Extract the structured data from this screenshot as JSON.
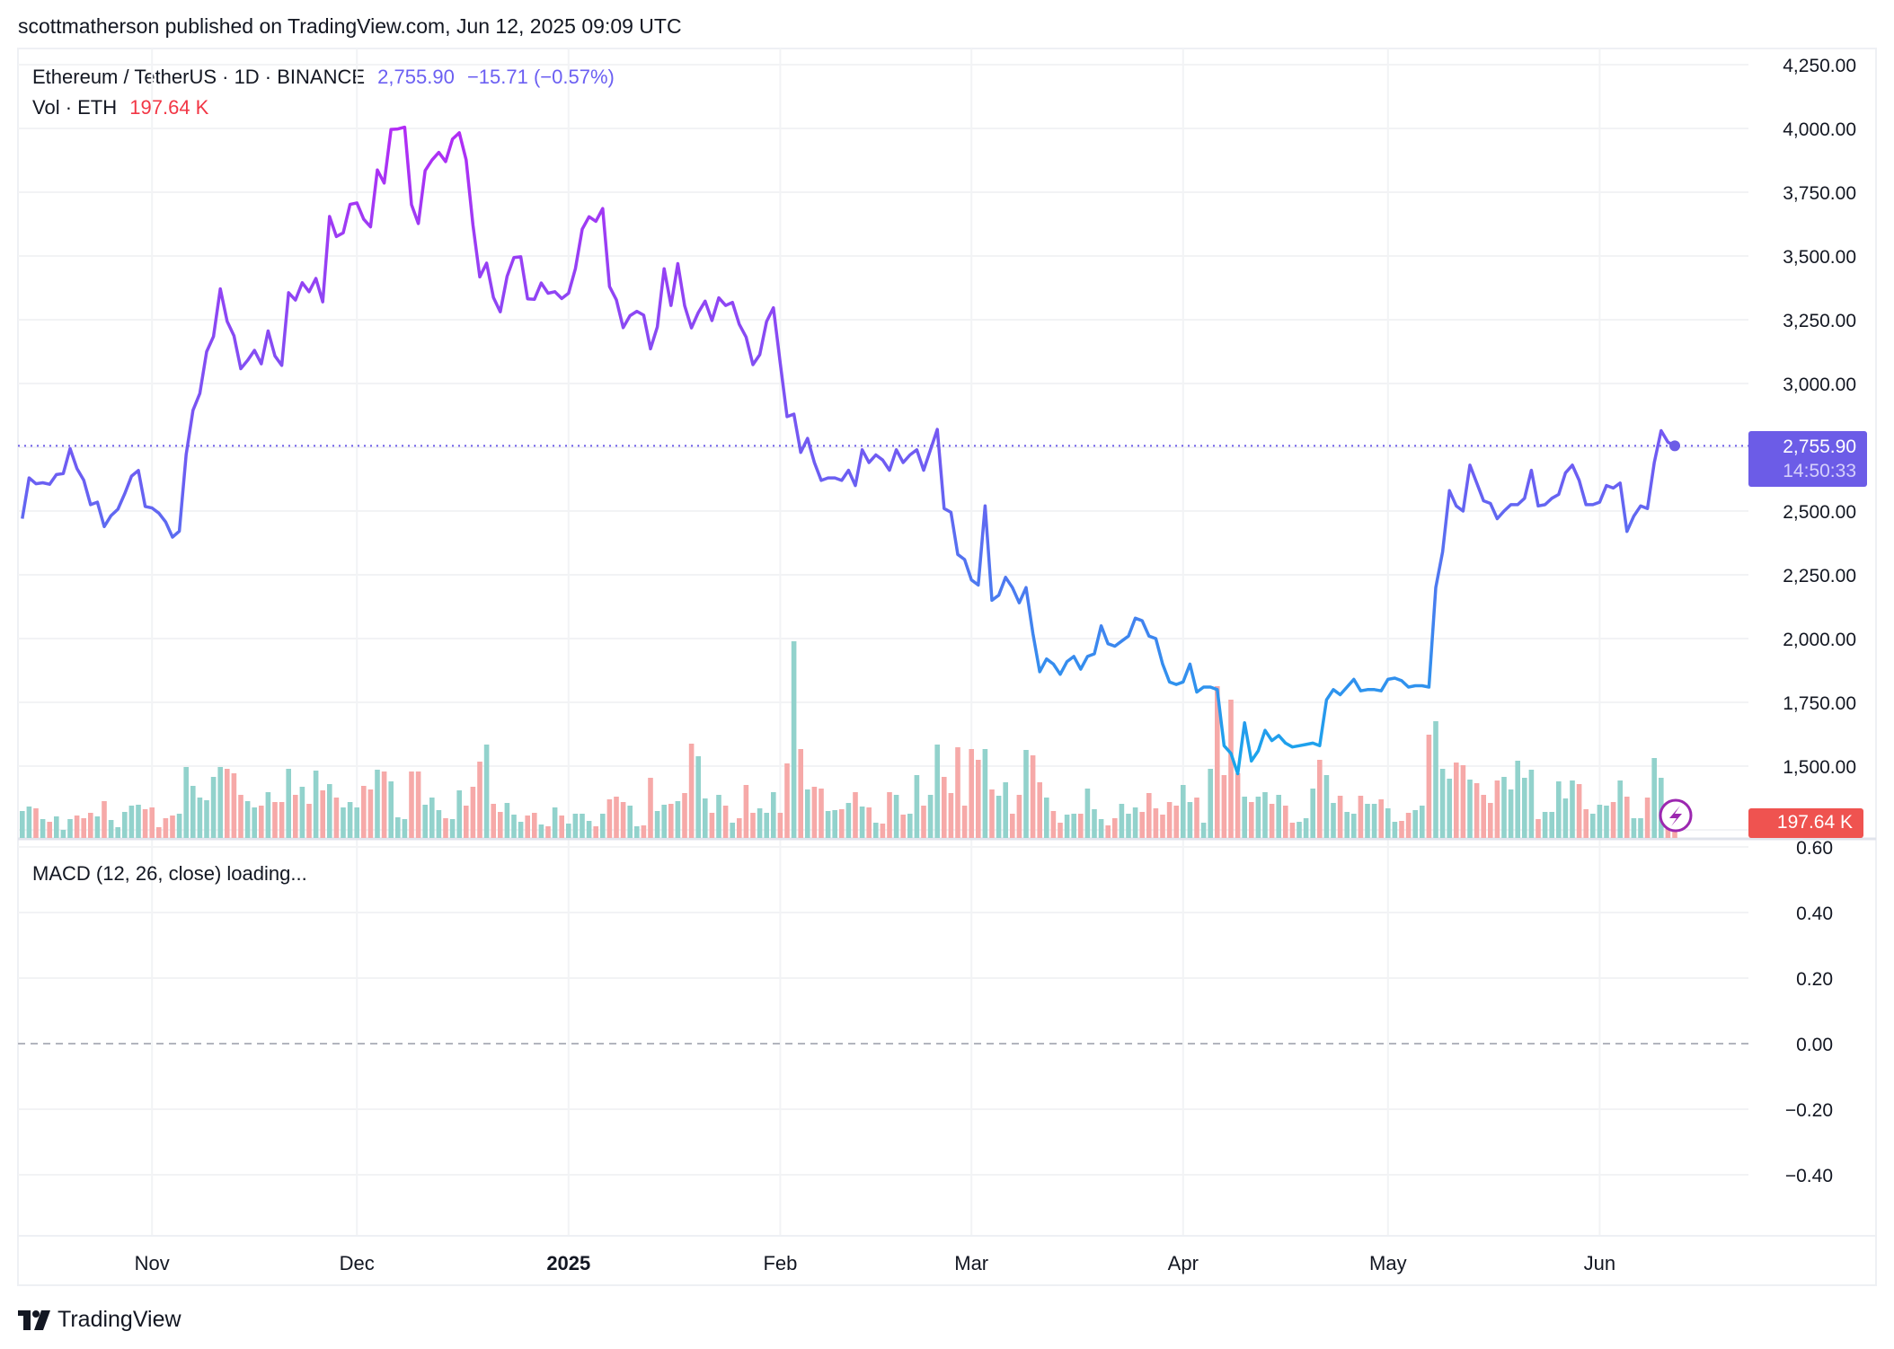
{
  "header": {
    "publish_line": "scottmatherson published on TradingView.com, Jun 12, 2025 09:09 UTC"
  },
  "legend": {
    "symbol": "Ethereum / TetherUS · 1D · BINANCE",
    "last_price": "2,755.90",
    "change": "−15.71 (−0.57%)",
    "volume_label": "Vol · ETH",
    "volume_value": "197.64 K"
  },
  "price_label": {
    "price": "2,755.90",
    "countdown": "14:50:33"
  },
  "volume_label_box": "197.64 K",
  "macd": {
    "title": "MACD (12, 26, close) loading...",
    "ticks": [
      "0.60",
      "0.40",
      "0.20",
      "0.00",
      "−0.20",
      "−0.40"
    ],
    "tick_values": [
      0.6,
      0.4,
      0.2,
      0,
      -0.2,
      -0.4
    ]
  },
  "footer": {
    "brand": "TradingView"
  },
  "colors": {
    "line_top": "#b22cf5",
    "line_mid": "#6b5ff2",
    "line_low": "#18a6ec",
    "vol_up": "#92d2cc",
    "vol_down": "#f6a9a8",
    "price_box": "#6c5ce7",
    "vol_box": "#ef5350",
    "flash_icon": "#9c27b0"
  },
  "chart_data": {
    "type": "line",
    "title": "Ethereum / TetherUS · 1D · BINANCE",
    "x_start": "2024-10-13",
    "x_interval": "1D",
    "x_ticks": [
      {
        "label": "Nov",
        "date": "2024-11-01",
        "bold": false
      },
      {
        "label": "Dec",
        "date": "2024-12-01",
        "bold": false
      },
      {
        "label": "2025",
        "date": "2025-01-01",
        "bold": true
      },
      {
        "label": "Feb",
        "date": "2025-02-01",
        "bold": false
      },
      {
        "label": "Mar",
        "date": "2025-03-01",
        "bold": false
      },
      {
        "label": "Apr",
        "date": "2025-04-01",
        "bold": false
      },
      {
        "label": "May",
        "date": "2025-05-01",
        "bold": false
      },
      {
        "label": "Jun",
        "date": "2025-06-01",
        "bold": false
      }
    ],
    "y_ticks": [
      "4,250.00",
      "4,000.00",
      "3,750.00",
      "3,500.00",
      "3,250.00",
      "3,000.00",
      "2,500.00",
      "2,250.00",
      "2,000.00",
      "1,750.00",
      "1,500.00"
    ],
    "y_tick_values": [
      4250,
      4000,
      3750,
      3500,
      3250,
      3000,
      2500,
      2250,
      2000,
      1750,
      1500
    ],
    "ylim": [
      1500,
      4250
    ],
    "last_value": 2755.9,
    "series": [
      {
        "name": "ETHUSDT close",
        "values": [
          2470,
          2630,
          2607,
          2611,
          2605,
          2643,
          2647,
          2745,
          2667,
          2621,
          2525,
          2535,
          2439,
          2482,
          2507,
          2568,
          2637,
          2659,
          2518,
          2512,
          2492,
          2457,
          2398,
          2421,
          2722,
          2895,
          2961,
          3125,
          3184,
          3371,
          3244,
          3187,
          3058,
          3091,
          3130,
          3077,
          3206,
          3108,
          3071,
          3356,
          3327,
          3395,
          3360,
          3412,
          3320,
          3655,
          3576,
          3591,
          3702,
          3708,
          3644,
          3614,
          3837,
          3786,
          3996,
          3998,
          4005,
          3701,
          3627,
          3835,
          3876,
          3906,
          3870,
          3958,
          3983,
          3877,
          3621,
          3418,
          3472,
          3337,
          3281,
          3420,
          3494,
          3497,
          3332,
          3330,
          3394,
          3354,
          3360,
          3333,
          3354,
          3450,
          3605,
          3654,
          3636,
          3686,
          3380,
          3328,
          3219,
          3266,
          3283,
          3268,
          3136,
          3222,
          3450,
          3306,
          3470,
          3305,
          3218,
          3278,
          3323,
          3247,
          3336,
          3306,
          3318,
          3232,
          3182,
          3074,
          3113,
          3243,
          3297,
          3080,
          2870,
          2880,
          2730,
          2785,
          2690,
          2620,
          2630,
          2630,
          2620,
          2660,
          2600,
          2740,
          2690,
          2720,
          2700,
          2660,
          2740,
          2690,
          2720,
          2740,
          2660,
          2740,
          2820,
          2510,
          2495,
          2330,
          2310,
          2230,
          2210,
          2520,
          2150,
          2170,
          2240,
          2200,
          2140,
          2200,
          2020,
          1870,
          1920,
          1900,
          1860,
          1910,
          1930,
          1880,
          1930,
          1940,
          2050,
          1980,
          1970,
          1990,
          2010,
          2080,
          2070,
          2010,
          2000,
          1900,
          1830,
          1820,
          1830,
          1900,
          1790,
          1810,
          1810,
          1800,
          1580,
          1550,
          1470,
          1670,
          1520,
          1560,
          1640,
          1600,
          1620,
          1590,
          1575,
          1580,
          1585,
          1590,
          1580,
          1760,
          1800,
          1780,
          1810,
          1840,
          1795,
          1800,
          1800,
          1795,
          1840,
          1845,
          1835,
          1810,
          1815,
          1815,
          1810,
          2200,
          2340,
          2580,
          2520,
          2500,
          2680,
          2610,
          2540,
          2530,
          2470,
          2500,
          2525,
          2525,
          2550,
          2660,
          2520,
          2525,
          2550,
          2565,
          2650,
          2680,
          2620,
          2525,
          2525,
          2535,
          2600,
          2590,
          2610,
          2420,
          2480,
          2520,
          2510,
          2690,
          2815,
          2770,
          2755.9
        ]
      },
      {
        "name": "Vol · ETH (K)",
        "values": [
          300,
          350,
          330,
          210,
          180,
          240,
          90,
          210,
          250,
          220,
          280,
          240,
          410,
          200,
          120,
          290,
          360,
          370,
          320,
          340,
          120,
          220,
          250,
          270,
          790,
          580,
          450,
          420,
          680,
          790,
          770,
          720,
          480,
          410,
          340,
          360,
          510,
          400,
          400,
          770,
          480,
          570,
          380,
          750,
          530,
          600,
          450,
          340,
          400,
          340,
          580,
          540,
          760,
          740,
          630,
          230,
          210,
          740,
          740,
          370,
          450,
          310,
          220,
          210,
          530,
          360,
          570,
          850,
          1040,
          380,
          290,
          390,
          260,
          180,
          250,
          280,
          150,
          130,
          340,
          250,
          160,
          270,
          270,
          190,
          130,
          270,
          430,
          460,
          400,
          360,
          130,
          140,
          670,
          300,
          370,
          380,
          410,
          500,
          1050,
          910,
          440,
          280,
          480,
          360,
          170,
          220,
          590,
          280,
          330,
          280,
          510,
          280,
          830,
          2190,
          990,
          540,
          570,
          550,
          300,
          310,
          320,
          390,
          510,
          350,
          340,
          170,
          160,
          510,
          480,
          260,
          270,
          700,
          360,
          480,
          1040,
          680,
          500,
          1010,
          360,
          990,
          870,
          990,
          540,
          470,
          620,
          270,
          480,
          980,
          920,
          620,
          450,
          300,
          170,
          260,
          270,
          270,
          550,
          320,
          210,
          140,
          220,
          380,
          270,
          340,
          290,
          500,
          330,
          260,
          400,
          360,
          590,
          400,
          450,
          170,
          770,
          1690,
          700,
          1540,
          720,
          460,
          400,
          460,
          510,
          380,
          480,
          360,
          170,
          180,
          220,
          550,
          870,
          700,
          390,
          470,
          290,
          270,
          470,
          380,
          380,
          430,
          330,
          180,
          190,
          280,
          310,
          360,
          1150,
          1300,
          770,
          660,
          840,
          810,
          650,
          610,
          480,
          390,
          640,
          680,
          540,
          860,
          670,
          760,
          210,
          290,
          290,
          630,
          440,
          640,
          600,
          320,
          270,
          370,
          360,
          400,
          640,
          460,
          220,
          220,
          450,
          890,
          670,
          400,
          197.64
        ]
      }
    ]
  }
}
